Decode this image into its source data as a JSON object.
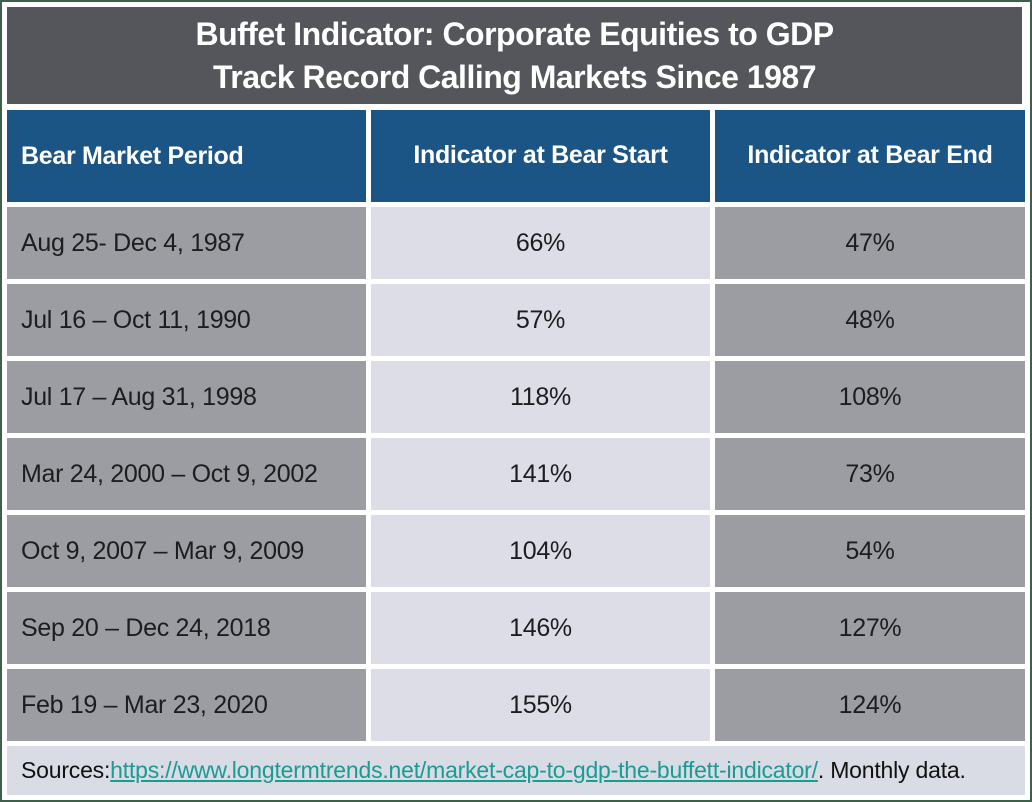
{
  "title": {
    "line1": "Buffet Indicator: Corporate Equities to GDP",
    "line2": "Track Record Calling Markets Since 1987"
  },
  "table": {
    "columns": [
      "Bear Market Period",
      "Indicator at Bear Start",
      "Indicator at Bear End"
    ],
    "rows": [
      {
        "period": "Aug 25- Dec 4, 1987",
        "start": "66%",
        "end": "47%"
      },
      {
        "period": "Jul 16 – Oct 11, 1990",
        "start": "57%",
        "end": "48%"
      },
      {
        "period": "Jul 17 – Aug 31, 1998",
        "start": "118%",
        "end": "108%"
      },
      {
        "period": "Mar 24, 2000 – Oct 9, 2002",
        "start": "141%",
        "end": "73%"
      },
      {
        "period": "Oct 9, 2007 – Mar 9, 2009",
        "start": "104%",
        "end": "54%"
      },
      {
        "period": "Sep 20 – Dec 24, 2018",
        "start": "146%",
        "end": "127%"
      },
      {
        "period": "Feb 19 – Mar 23, 2020",
        "start": "155%",
        "end": "124%"
      }
    ]
  },
  "footer": {
    "prefix": "Sources: ",
    "link": "https://www.longtermtrends.net/market-cap-to-gdp-the-buffett-indicator/",
    "suffix": ". Monthly data."
  },
  "colors": {
    "title_bg": "#54565B",
    "header_blue": "#1A5586",
    "cell_gray": "#9B9DA2",
    "cell_lavender": "#DCDDE7",
    "footer_bg": "#D9DBE5",
    "link_teal": "#189C94",
    "outer_border_green": "#3E604A"
  }
}
